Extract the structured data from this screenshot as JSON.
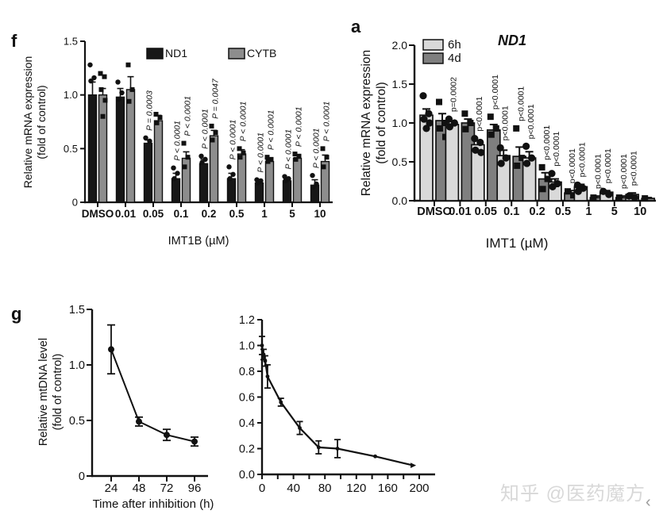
{
  "watermark": {
    "text": "知乎 @医药魔方",
    "color": "#d8d8d8"
  },
  "chevron": {
    "glyph": "‹"
  },
  "chart_data": [
    {
      "id": "f",
      "type": "bar",
      "panel_label": "f",
      "title": "",
      "ylabel_lines": [
        "Relative mRNA expression",
        "(fold of control)"
      ],
      "xlabel": "IMT1B (µM)",
      "categories": [
        "DMSO",
        "0.01",
        "0.05",
        "0.1",
        "0.2",
        "0.5",
        "1",
        "5",
        "10"
      ],
      "ylim": [
        0,
        1.5
      ],
      "yticks": [
        {
          "v": 0,
          "label": "0"
        },
        {
          "v": 0.5,
          "label": "0.5"
        },
        {
          "v": 1.0,
          "label": "1.0"
        },
        {
          "v": 1.5,
          "label": "1.5"
        }
      ],
      "legend": [
        {
          "label": "ND1",
          "color": "#171717"
        },
        {
          "label": "CYTB",
          "color": "#8d8d8d"
        }
      ],
      "p_italic": true,
      "series": [
        {
          "name": "ND1",
          "color": "#171717",
          "marker": "circle",
          "values": [
            1.0,
            0.98,
            0.55,
            0.22,
            0.36,
            0.22,
            0.18,
            0.2,
            0.16
          ],
          "errors": [
            0.12,
            0.08,
            0.03,
            0.05,
            0.04,
            0.05,
            0.02,
            0.03,
            0.05
          ],
          "points": [
            [
              1.28,
              1.16,
              1.13
            ],
            [
              1.12,
              1.02,
              0.96
            ],
            [
              0.6,
              0.57
            ],
            [
              0.32,
              0.27,
              0.22
            ],
            [
              0.43,
              0.4,
              0.37
            ],
            [
              0.33,
              0.26,
              0.22
            ],
            [
              0.21,
              0.2,
              0.18
            ],
            [
              0.24,
              0.22,
              0.2
            ],
            [
              0.25,
              0.17,
              0.14
            ]
          ],
          "p_labels": [
            null,
            null,
            "P = 0.0003",
            "P < 0.0001",
            "P < 0.0001",
            "P < 0.0001",
            "P < 0.0001",
            "P < 0.0001",
            "P < 0.0001"
          ]
        },
        {
          "name": "CYTB",
          "color": "#8d8d8d",
          "marker": "square",
          "values": [
            1.0,
            1.05,
            0.76,
            0.41,
            0.62,
            0.45,
            0.38,
            0.41,
            0.38
          ],
          "errors": [
            0.06,
            0.12,
            0.05,
            0.06,
            0.05,
            0.04,
            0.03,
            0.03,
            0.06
          ],
          "points": [
            [
              1.2,
              1.17,
              1.05,
              0.95,
              0.8
            ],
            [
              1.28,
              1.05,
              0.94
            ],
            [
              0.82,
              0.79,
              0.74
            ],
            [
              0.55,
              0.42,
              0.33
            ],
            [
              0.71,
              0.65,
              0.58
            ],
            [
              0.5,
              0.46,
              0.42
            ],
            [
              0.42,
              0.4,
              0.38
            ],
            [
              0.45,
              0.43,
              0.4
            ],
            [
              0.5,
              0.42,
              0.33
            ]
          ],
          "p_labels": [
            null,
            null,
            null,
            "P < 0.0001",
            "P = 0.0047",
            "P < 0.0001",
            "P < 0.0001",
            "P < 0.0001",
            "P < 0.0001"
          ]
        }
      ]
    },
    {
      "id": "a",
      "type": "bar",
      "panel_label": "a",
      "title": "ND1",
      "ylabel_lines": [
        "Relative mRNA expression",
        "(fold of control)"
      ],
      "xlabel": "IMT1 (µM)",
      "categories": [
        "DMSO",
        "0.01",
        "0.05",
        "0.1",
        "0.2",
        "0.5",
        "1",
        "5",
        "10"
      ],
      "ylim": [
        0,
        2.0
      ],
      "yticks": [
        {
          "v": 0,
          "label": "0.0"
        },
        {
          "v": 0.5,
          "label": "0.5"
        },
        {
          "v": 1.0,
          "label": "1.0"
        },
        {
          "v": 1.5,
          "label": "1.5"
        },
        {
          "v": 2.0,
          "label": "2.0"
        }
      ],
      "legend": [
        {
          "label": "6h",
          "color": "#d9d9d9"
        },
        {
          "label": "4d",
          "color": "#7f7f7f"
        }
      ],
      "p_italic": false,
      "series": [
        {
          "name": "6h",
          "color": "#d9d9d9",
          "marker": "circle",
          "values": [
            1.1,
            0.98,
            0.72,
            0.58,
            0.55,
            0.24,
            0.18,
            0.11,
            0.08
          ],
          "errors": [
            0.08,
            0.04,
            0.05,
            0.07,
            0.08,
            0.04,
            0.03,
            0.02,
            0.02
          ],
          "points": [
            [
              1.35,
              1.12,
              1.05,
              1.0,
              0.93
            ],
            [
              1.05,
              1.0,
              0.95
            ],
            [
              0.8,
              0.75,
              0.65,
              0.62
            ],
            [
              0.68,
              0.55,
              0.48
            ],
            [
              0.7,
              0.55,
              0.48
            ],
            [
              0.35,
              0.22,
              0.18
            ],
            [
              0.2,
              0.16,
              0.12
            ],
            [
              0.12,
              0.08
            ],
            [
              0.06,
              0.04
            ]
          ],
          "p_labels": [
            null,
            "p=0.0002",
            "p<0.0001",
            "p<0.0001",
            "p<0.0001",
            "p<0.0001",
            "p<0.0001",
            "p<0.0001",
            "p<0.0001"
          ]
        },
        {
          "name": "4d",
          "color": "#7f7f7f",
          "marker": "square",
          "values": [
            1.03,
            1.0,
            0.91,
            0.57,
            0.28,
            0.1,
            0.04,
            0.04,
            0.03
          ],
          "errors": [
            0.09,
            0.05,
            0.07,
            0.12,
            0.08,
            0.03,
            0.02,
            0.02,
            0.01
          ],
          "points": [
            [
              1.27,
              1.0,
              0.93,
              0.82
            ],
            [
              1.12,
              1.0,
              0.92
            ],
            [
              1.08,
              0.93,
              0.85
            ],
            [
              0.93,
              0.55,
              0.45
            ],
            [
              0.43,
              0.28,
              0.15
            ],
            [
              0.12,
              0.07
            ],
            [
              0.04
            ],
            [
              0.04
            ],
            [
              0.03
            ]
          ],
          "p_labels": [
            null,
            null,
            "p<0.0001",
            "p<0.0001",
            "p<0.0001",
            "p<0.0001",
            "p<0.0001",
            "p<0.0001",
            null
          ]
        }
      ]
    },
    {
      "id": "g",
      "type": "line",
      "panel_label": "g",
      "title": "",
      "ylabel_lines": [
        "Relative mtDNA level",
        "(fold of control)"
      ],
      "xlabel": "Time after inhibition (h)",
      "ylim": [
        0,
        1.5
      ],
      "yticks": [
        {
          "v": 0,
          "label": "0"
        },
        {
          "v": 0.5,
          "label": "0.5"
        },
        {
          "v": 1.0,
          "label": "1.0"
        },
        {
          "v": 1.5,
          "label": "1.5"
        }
      ],
      "xticks": [
        {
          "v": 24,
          "label": "24"
        },
        {
          "v": 48,
          "label": "48"
        },
        {
          "v": 72,
          "label": "72"
        },
        {
          "v": 96,
          "label": "96"
        }
      ],
      "x": [
        24,
        48,
        72,
        96
      ],
      "y": [
        1.14,
        0.49,
        0.37,
        0.31
      ],
      "errors": [
        0.22,
        0.04,
        0.05,
        0.04
      ],
      "marker": "circle"
    },
    {
      "id": "decay",
      "type": "line",
      "panel_label": "",
      "title": "",
      "ylabel_lines": [],
      "xlabel": "",
      "ylim": [
        0,
        1.2
      ],
      "yticks": [
        {
          "v": 0,
          "label": "0.0"
        },
        {
          "v": 0.2,
          "label": "0.2"
        },
        {
          "v": 0.4,
          "label": "0.4"
        },
        {
          "v": 0.6,
          "label": "0.6"
        },
        {
          "v": 0.8,
          "label": "0.8"
        },
        {
          "v": 1.0,
          "label": "1.0"
        },
        {
          "v": 1.2,
          "label": "1.2"
        }
      ],
      "xticks": [
        {
          "v": 0,
          "label": "0"
        },
        {
          "v": 20,
          "label": ""
        },
        {
          "v": 40,
          "label": "40"
        },
        {
          "v": 60,
          "label": ""
        },
        {
          "v": 80,
          "label": "80"
        },
        {
          "v": 100,
          "label": ""
        },
        {
          "v": 120,
          "label": "120"
        },
        {
          "v": 140,
          "label": ""
        },
        {
          "v": 160,
          "label": "160"
        },
        {
          "v": 180,
          "label": ""
        },
        {
          "v": 200,
          "label": "200"
        }
      ],
      "x": [
        0,
        2,
        4,
        7,
        24,
        48,
        72,
        96,
        144,
        192
      ],
      "y": [
        1.0,
        0.93,
        0.88,
        0.76,
        0.56,
        0.36,
        0.21,
        0.2,
        0.14,
        0.07
      ],
      "errors": [
        0.07,
        0.04,
        0.04,
        0.09,
        0.03,
        0.05,
        0.05,
        0.07,
        0,
        0
      ],
      "marker": "circle",
      "end_marker": "triangle"
    }
  ]
}
